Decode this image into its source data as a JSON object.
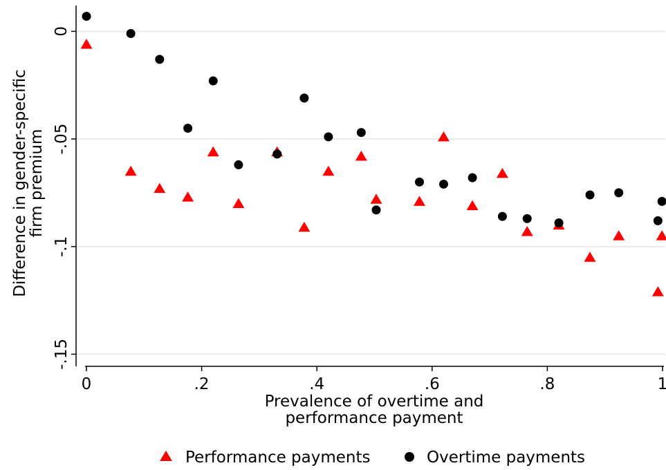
{
  "chart_data": {
    "type": "scatter",
    "title": "",
    "xlabel": [
      "Prevalence of overtime and",
      "performance payment"
    ],
    "ylabel": [
      "Difference in gender-specific",
      "firm premium"
    ],
    "xlim": [
      0,
      1
    ],
    "ylim": [
      -0.155,
      0.012
    ],
    "x_ticks": [
      {
        "value": 0,
        "label": "0"
      },
      {
        "value": 0.2,
        "label": ".2"
      },
      {
        "value": 0.4,
        "label": ".4"
      },
      {
        "value": 0.6,
        "label": ".6"
      },
      {
        "value": 0.8,
        "label": ".8"
      },
      {
        "value": 1,
        "label": "1"
      }
    ],
    "y_ticks": [
      {
        "value": 0,
        "label": "0"
      },
      {
        "value": -0.05,
        "label": "-.05"
      },
      {
        "value": -0.1,
        "label": "-.1"
      },
      {
        "value": -0.15,
        "label": "-.15"
      }
    ],
    "grid": "horizontal",
    "legend_position": "bottom",
    "series": [
      {
        "name": "Performance payments",
        "marker": "triangle",
        "color": "#ff0000",
        "points": [
          [
            0.0,
            -0.006
          ],
          [
            0.077,
            -0.065
          ],
          [
            0.127,
            -0.073
          ],
          [
            0.176,
            -0.077
          ],
          [
            0.22,
            -0.056
          ],
          [
            0.264,
            -0.08
          ],
          [
            0.331,
            -0.056
          ],
          [
            0.378,
            -0.091
          ],
          [
            0.42,
            -0.065
          ],
          [
            0.477,
            -0.058
          ],
          [
            0.503,
            -0.078
          ],
          [
            0.578,
            -0.079
          ],
          [
            0.62,
            -0.049
          ],
          [
            0.67,
            -0.081
          ],
          [
            0.722,
            -0.066
          ],
          [
            0.765,
            -0.093
          ],
          [
            0.82,
            -0.09
          ],
          [
            0.874,
            -0.105
          ],
          [
            0.924,
            -0.095
          ],
          [
            0.992,
            -0.121
          ],
          [
            0.999,
            -0.095
          ]
        ]
      },
      {
        "name": "Overtime payments",
        "marker": "circle",
        "color": "#000000",
        "points": [
          [
            0.0,
            0.007
          ],
          [
            0.077,
            -0.001
          ],
          [
            0.127,
            -0.013
          ],
          [
            0.176,
            -0.045
          ],
          [
            0.22,
            -0.023
          ],
          [
            0.264,
            -0.062
          ],
          [
            0.331,
            -0.057
          ],
          [
            0.378,
            -0.031
          ],
          [
            0.42,
            -0.049
          ],
          [
            0.477,
            -0.047
          ],
          [
            0.503,
            -0.083
          ],
          [
            0.578,
            -0.07
          ],
          [
            0.62,
            -0.071
          ],
          [
            0.67,
            -0.068
          ],
          [
            0.722,
            -0.086
          ],
          [
            0.765,
            -0.087
          ],
          [
            0.82,
            -0.089
          ],
          [
            0.874,
            -0.076
          ],
          [
            0.924,
            -0.075
          ],
          [
            0.992,
            -0.088
          ],
          [
            0.999,
            -0.079
          ]
        ]
      }
    ]
  }
}
